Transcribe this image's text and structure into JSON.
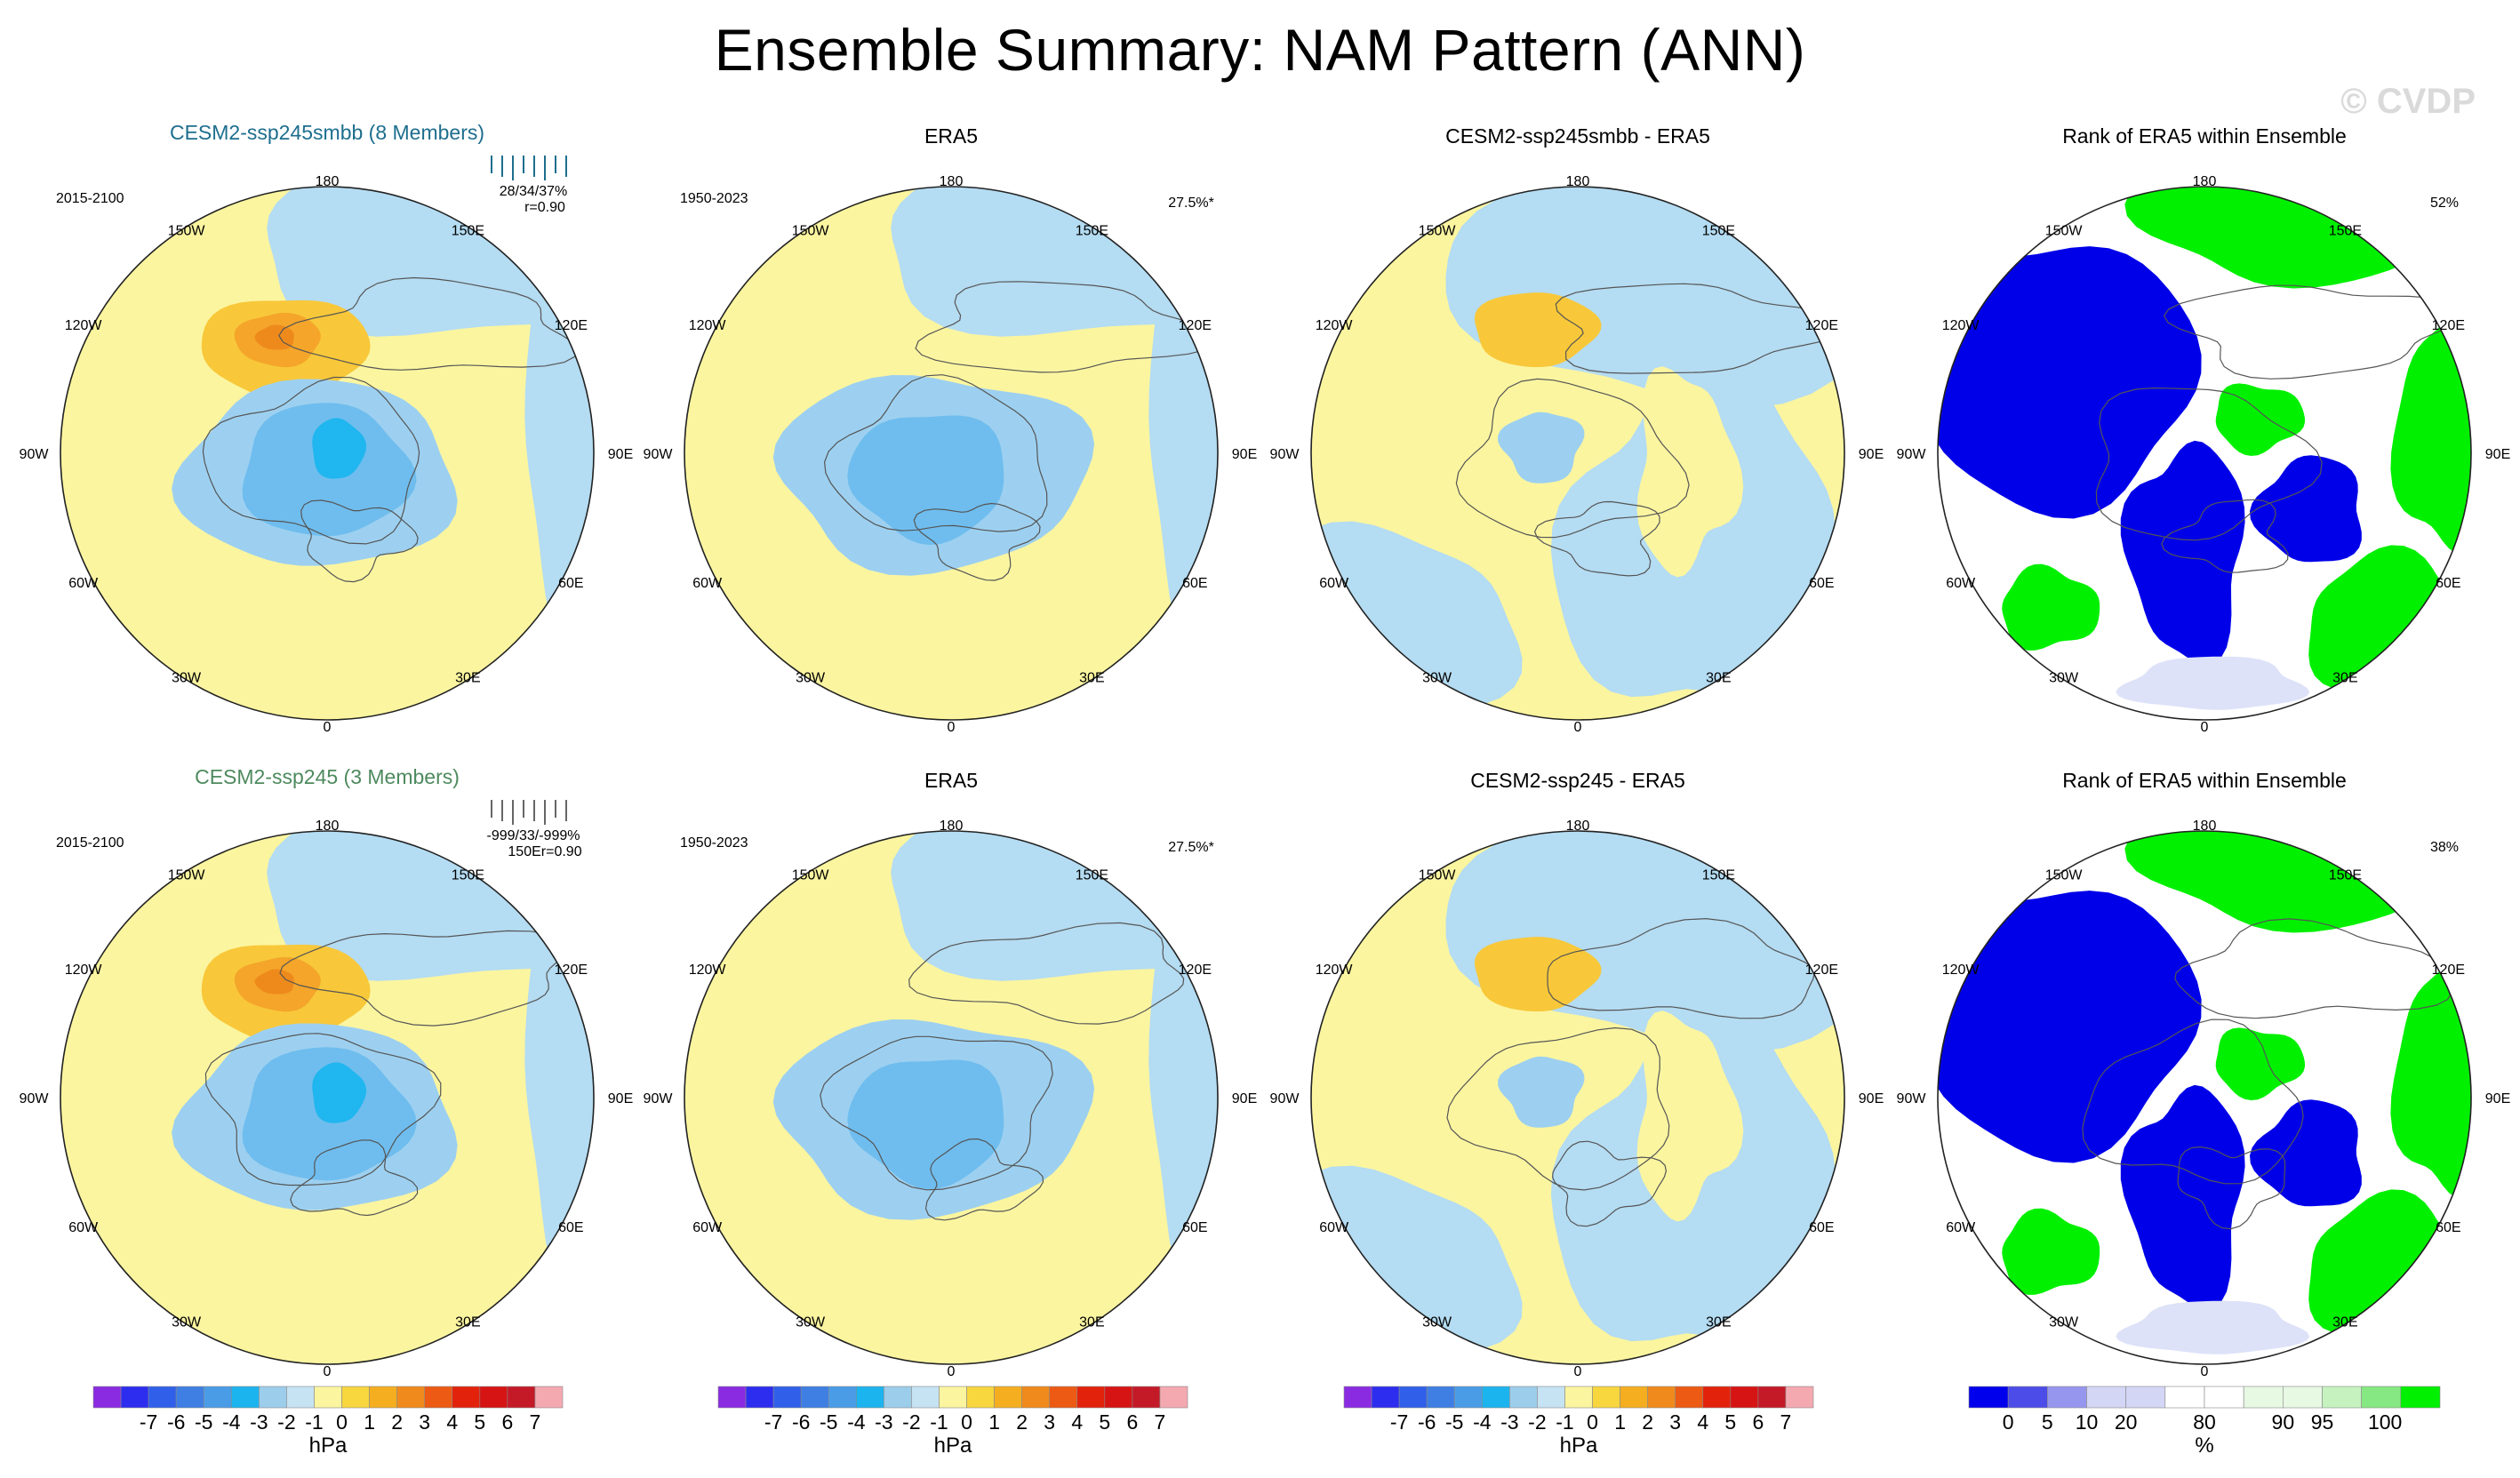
{
  "figure": {
    "title": "Ensemble Summary: NAM Pattern (ANN)",
    "watermark": "© CVDP"
  },
  "meridian_labels": [
    "180",
    "150E",
    "120E",
    "90E",
    "60E",
    "30E",
    "0",
    "30W",
    "60W",
    "90W",
    "120W",
    "150W"
  ],
  "colors": {
    "ocean_blue": "#b4dcf2",
    "land_yellow": "#fbf5a0",
    "pos_1": "#f8c83a",
    "pos_2": "#f4a52a",
    "pos_3": "#ee8a1c",
    "neg_1": "#9dd0f0",
    "neg_2": "#6fbdee",
    "neg_3": "#20b6ef",
    "rank_low": "#0000e8",
    "rank_mid": "#ffffff",
    "rank_high": "#00f000",
    "rank_pale": "#dde2f8",
    "rank_palegreen": "#e8fbe6",
    "title_blue": "#1e6e8e",
    "title_green": "#4e8a5e"
  },
  "chart_data": [
    {
      "type": "heatmap",
      "id": "r1c1",
      "title": "CESM2-ssp245smbb (8 Members)",
      "left_label": "2015-2100",
      "stat_label": "28/34/37%",
      "stat_label2": "r=0.90",
      "kind": "model",
      "strength": 1.0,
      "unit": "hPa"
    },
    {
      "type": "heatmap",
      "id": "r1c2",
      "title": "ERA5",
      "left_label": "1950-2023",
      "right_label": "27.5%*",
      "kind": "obs",
      "strength": 0.8,
      "unit": "hPa"
    },
    {
      "type": "heatmap",
      "id": "r1c3",
      "title": "CESM2-ssp245smbb - ERA5",
      "kind": "diff",
      "unit": "hPa"
    },
    {
      "type": "heatmap",
      "id": "r1c4",
      "title": "Rank of ERA5 within Ensemble",
      "right_label": "52%",
      "kind": "rank",
      "unit": "%"
    },
    {
      "type": "heatmap",
      "id": "r2c1",
      "title": "CESM2-ssp245 (3 Members)",
      "left_label": "2015-2100",
      "stat_label": "-999/33/-999%",
      "stat_label2": "150Er=0.90",
      "kind": "model",
      "strength": 1.0,
      "unit": "hPa"
    },
    {
      "type": "heatmap",
      "id": "r2c2",
      "title": "ERA5",
      "left_label": "1950-2023",
      "right_label": "27.5%*",
      "kind": "obs",
      "strength": 0.8,
      "unit": "hPa"
    },
    {
      "type": "heatmap",
      "id": "r2c3",
      "title": "CESM2-ssp245 - ERA5",
      "kind": "diff",
      "unit": "hPa"
    },
    {
      "type": "heatmap",
      "id": "r2c4",
      "title": "Rank of ERA5 within Ensemble",
      "right_label": "38%",
      "kind": "rank",
      "unit": "%"
    }
  ],
  "colorbars": {
    "hpa": {
      "unit": "hPa",
      "colors": [
        "#8a2be2",
        "#2d2df0",
        "#3060ea",
        "#3f7fe3",
        "#4b9ce6",
        "#1cb4ee",
        "#9ccdeb",
        "#c6e3f3",
        "#fbf5a0",
        "#f8d63e",
        "#f5ae20",
        "#f08a1c",
        "#ec5a14",
        "#e3220c",
        "#d61414",
        "#c41a28",
        "#f4a9b0"
      ],
      "labels": [
        "-7",
        "-6",
        "-5",
        "-4",
        "-3",
        "-2",
        "-1",
        "0",
        "1",
        "2",
        "3",
        "4",
        "5",
        "6",
        "7"
      ]
    },
    "rank": {
      "unit": "%",
      "colors": [
        "#0000ec",
        "#4c4ce8",
        "#9696ef",
        "#d4d6f6",
        "#d4d6f6",
        "#ffffff",
        "#ffffff",
        "#e7f8e3",
        "#e7f8e3",
        "#c6f2c0",
        "#86e882",
        "#00f000"
      ],
      "labels": [
        "0",
        "5",
        "10",
        "20",
        "80",
        "90",
        "95",
        "100"
      ]
    }
  }
}
